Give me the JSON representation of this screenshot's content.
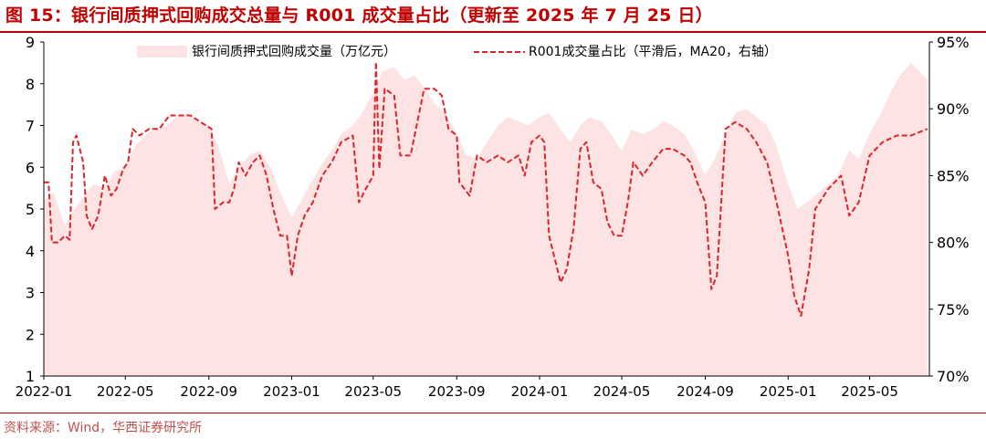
{
  "title": "图 15：银行间质押式回购成交总量与 R001 成交量占比（更新至 2025 年 7 月 25 日）",
  "source": "资料来源：Wind，华西证券研究所",
  "colors": {
    "accent": "#c00000",
    "area": "#fde3e3",
    "line": "#d9262c",
    "axis": "#000000"
  },
  "chart_data": {
    "type": "area",
    "x_ticks": [
      "2022-01",
      "2022-05",
      "2022-09",
      "2023-01",
      "2023-05",
      "2023-09",
      "2024-01",
      "2024-05",
      "2024-09",
      "2025-01",
      "2025-05"
    ],
    "left_axis": {
      "min": 1,
      "max": 9,
      "ticks": [
        "1",
        "2",
        "3",
        "4",
        "5",
        "6",
        "7",
        "8",
        "9"
      ]
    },
    "right_axis": {
      "min": 70,
      "max": 95,
      "ticks": [
        "70%",
        "75%",
        "80%",
        "85%",
        "90%",
        "95%"
      ]
    },
    "legend": {
      "placement": "top"
    },
    "series": [
      {
        "name": "银行间质押式回购成交量（万亿元）",
        "type": "area",
        "axis": "left",
        "points": [
          [
            "2022-01-01",
            5.2
          ],
          [
            "2022-01-15",
            5.4
          ],
          [
            "2022-02-01",
            4.6
          ],
          [
            "2022-02-15",
            5.0
          ],
          [
            "2022-03-01",
            5.3
          ],
          [
            "2022-03-15",
            5.6
          ],
          [
            "2022-04-01",
            5.5
          ],
          [
            "2022-04-15",
            5.9
          ],
          [
            "2022-05-01",
            6.0
          ],
          [
            "2022-05-15",
            6.5
          ],
          [
            "2022-06-01",
            6.8
          ],
          [
            "2022-06-15",
            6.9
          ],
          [
            "2022-07-01",
            7.0
          ],
          [
            "2022-07-15",
            7.2
          ],
          [
            "2022-08-01",
            7.3
          ],
          [
            "2022-08-15",
            7.1
          ],
          [
            "2022-09-01",
            7.0
          ],
          [
            "2022-09-15",
            6.5
          ],
          [
            "2022-10-01",
            5.6
          ],
          [
            "2022-10-15",
            6.0
          ],
          [
            "2022-11-01",
            6.3
          ],
          [
            "2022-11-15",
            6.4
          ],
          [
            "2022-12-01",
            6.0
          ],
          [
            "2022-12-15",
            5.4
          ],
          [
            "2023-01-01",
            4.8
          ],
          [
            "2023-01-15",
            5.2
          ],
          [
            "2023-02-01",
            5.7
          ],
          [
            "2023-02-15",
            6.1
          ],
          [
            "2023-03-01",
            6.4
          ],
          [
            "2023-03-15",
            6.8
          ],
          [
            "2023-04-01",
            7.0
          ],
          [
            "2023-04-15",
            7.3
          ],
          [
            "2023-05-01",
            7.8
          ],
          [
            "2023-05-15",
            8.3
          ],
          [
            "2023-06-01",
            8.4
          ],
          [
            "2023-06-15",
            8.1
          ],
          [
            "2023-07-01",
            8.2
          ],
          [
            "2023-07-15",
            7.9
          ],
          [
            "2023-08-01",
            7.5
          ],
          [
            "2023-08-15",
            7.3
          ],
          [
            "2023-09-01",
            6.8
          ],
          [
            "2023-09-15",
            6.3
          ],
          [
            "2023-10-01",
            6.2
          ],
          [
            "2023-10-15",
            6.6
          ],
          [
            "2023-11-01",
            7.0
          ],
          [
            "2023-11-15",
            7.2
          ],
          [
            "2023-12-01",
            7.1
          ],
          [
            "2023-12-15",
            7.0
          ],
          [
            "2024-01-01",
            7.2
          ],
          [
            "2024-01-15",
            7.3
          ],
          [
            "2024-02-01",
            6.9
          ],
          [
            "2024-02-15",
            6.6
          ],
          [
            "2024-03-01",
            7.0
          ],
          [
            "2024-03-15",
            7.2
          ],
          [
            "2024-04-01",
            7.1
          ],
          [
            "2024-04-15",
            6.8
          ],
          [
            "2024-05-01",
            6.4
          ],
          [
            "2024-05-15",
            6.9
          ],
          [
            "2024-06-01",
            6.8
          ],
          [
            "2024-06-15",
            6.9
          ],
          [
            "2024-07-01",
            7.1
          ],
          [
            "2024-07-15",
            7.0
          ],
          [
            "2024-08-01",
            6.8
          ],
          [
            "2024-08-15",
            6.4
          ],
          [
            "2024-09-01",
            5.8
          ],
          [
            "2024-09-15",
            6.2
          ],
          [
            "2024-10-01",
            6.8
          ],
          [
            "2024-10-15",
            7.3
          ],
          [
            "2024-11-01",
            7.4
          ],
          [
            "2024-11-15",
            7.2
          ],
          [
            "2024-12-01",
            7.0
          ],
          [
            "2024-12-15",
            6.5
          ],
          [
            "2025-01-01",
            5.6
          ],
          [
            "2025-01-15",
            5.0
          ],
          [
            "2025-02-01",
            5.2
          ],
          [
            "2025-02-15",
            5.4
          ],
          [
            "2025-03-01",
            5.6
          ],
          [
            "2025-03-15",
            5.8
          ],
          [
            "2025-04-01",
            6.4
          ],
          [
            "2025-04-15",
            6.2
          ],
          [
            "2025-05-01",
            6.8
          ],
          [
            "2025-05-15",
            7.2
          ],
          [
            "2025-06-01",
            7.8
          ],
          [
            "2025-06-15",
            8.2
          ],
          [
            "2025-07-01",
            8.5
          ],
          [
            "2025-07-25",
            8.1
          ]
        ]
      },
      {
        "name": "R001成交量占比（平滑后，MA20，右轴）",
        "type": "line",
        "style": "dashed",
        "axis": "right",
        "points": [
          [
            "2022-01-01",
            84.5
          ],
          [
            "2022-01-08",
            84.5
          ],
          [
            "2022-01-13",
            80.0
          ],
          [
            "2022-01-22",
            80.0
          ],
          [
            "2022-02-01",
            80.5
          ],
          [
            "2022-02-08",
            80.2
          ],
          [
            "2022-02-13",
            87.5
          ],
          [
            "2022-02-18",
            88.0
          ],
          [
            "2022-02-28",
            86.0
          ],
          [
            "2022-03-05",
            82.0
          ],
          [
            "2022-03-13",
            81.0
          ],
          [
            "2022-03-22",
            82.0
          ],
          [
            "2022-04-01",
            85.0
          ],
          [
            "2022-04-10",
            83.5
          ],
          [
            "2022-04-18",
            84.0
          ],
          [
            "2022-04-28",
            85.5
          ],
          [
            "2022-05-05",
            86.0
          ],
          [
            "2022-05-12",
            88.5
          ],
          [
            "2022-05-22",
            88.0
          ],
          [
            "2022-06-05",
            88.5
          ],
          [
            "2022-06-20",
            88.5
          ],
          [
            "2022-07-05",
            89.5
          ],
          [
            "2022-07-20",
            89.5
          ],
          [
            "2022-08-05",
            89.5
          ],
          [
            "2022-08-20",
            89.0
          ],
          [
            "2022-09-05",
            88.5
          ],
          [
            "2022-09-10",
            82.5
          ],
          [
            "2022-09-22",
            83.0
          ],
          [
            "2022-10-01",
            83.0
          ],
          [
            "2022-10-08",
            84.0
          ],
          [
            "2022-10-15",
            86.0
          ],
          [
            "2022-10-25",
            85.0
          ],
          [
            "2022-11-05",
            86.0
          ],
          [
            "2022-11-15",
            86.5
          ],
          [
            "2022-11-25",
            85.0
          ],
          [
            "2022-12-05",
            82.5
          ],
          [
            "2022-12-15",
            80.5
          ],
          [
            "2022-12-25",
            80.5
          ],
          [
            "2023-01-01",
            77.5
          ],
          [
            "2023-01-10",
            80.5
          ],
          [
            "2023-01-20",
            82.0
          ],
          [
            "2023-02-01",
            83.0
          ],
          [
            "2023-02-15",
            85.0
          ],
          [
            "2023-03-01",
            86.0
          ],
          [
            "2023-03-15",
            87.5
          ],
          [
            "2023-04-01",
            88.0
          ],
          [
            "2023-04-10",
            83.0
          ],
          [
            "2023-04-20",
            84.0
          ],
          [
            "2023-05-01",
            85.0
          ],
          [
            "2023-05-05",
            93.5
          ],
          [
            "2023-05-10",
            85.5
          ],
          [
            "2023-05-18",
            91.5
          ],
          [
            "2023-06-01",
            91.0
          ],
          [
            "2023-06-10",
            86.5
          ],
          [
            "2023-06-25",
            86.5
          ],
          [
            "2023-07-05",
            89.0
          ],
          [
            "2023-07-15",
            91.5
          ],
          [
            "2023-07-30",
            91.5
          ],
          [
            "2023-08-10",
            91.0
          ],
          [
            "2023-08-20",
            88.5
          ],
          [
            "2023-09-01",
            88.0
          ],
          [
            "2023-09-05",
            84.5
          ],
          [
            "2023-09-20",
            83.5
          ],
          [
            "2023-10-01",
            86.5
          ],
          [
            "2023-10-15",
            86.0
          ],
          [
            "2023-11-01",
            86.5
          ],
          [
            "2023-11-15",
            86.0
          ],
          [
            "2023-12-01",
            86.5
          ],
          [
            "2023-12-10",
            85.0
          ],
          [
            "2023-12-20",
            87.5
          ],
          [
            "2024-01-01",
            88.0
          ],
          [
            "2024-01-08",
            87.5
          ],
          [
            "2024-01-15",
            80.5
          ],
          [
            "2024-02-01",
            77.0
          ],
          [
            "2024-02-10",
            78.0
          ],
          [
            "2024-02-20",
            81.0
          ],
          [
            "2024-03-01",
            87.0
          ],
          [
            "2024-03-10",
            87.5
          ],
          [
            "2024-03-20",
            84.5
          ],
          [
            "2024-04-01",
            84.0
          ],
          [
            "2024-04-10",
            81.5
          ],
          [
            "2024-04-20",
            80.5
          ],
          [
            "2024-05-01",
            80.5
          ],
          [
            "2024-05-10",
            83.0
          ],
          [
            "2024-05-18",
            86.0
          ],
          [
            "2024-06-01",
            85.0
          ],
          [
            "2024-06-15",
            86.0
          ],
          [
            "2024-07-01",
            87.0
          ],
          [
            "2024-07-15",
            87.0
          ],
          [
            "2024-08-01",
            86.5
          ],
          [
            "2024-08-10",
            86.0
          ],
          [
            "2024-08-20",
            84.5
          ],
          [
            "2024-09-01",
            83.0
          ],
          [
            "2024-09-10",
            76.5
          ],
          [
            "2024-09-18",
            77.5
          ],
          [
            "2024-10-01",
            88.5
          ],
          [
            "2024-10-15",
            89.0
          ],
          [
            "2024-11-01",
            88.5
          ],
          [
            "2024-11-15",
            87.5
          ],
          [
            "2024-12-01",
            86.0
          ],
          [
            "2024-12-15",
            83.0
          ],
          [
            "2025-01-01",
            79.0
          ],
          [
            "2025-01-10",
            76.0
          ],
          [
            "2025-01-20",
            74.5
          ],
          [
            "2025-02-01",
            78.0
          ],
          [
            "2025-02-10",
            82.5
          ],
          [
            "2025-03-01",
            84.0
          ],
          [
            "2025-03-20",
            85.0
          ],
          [
            "2025-04-01",
            82.0
          ],
          [
            "2025-04-15",
            83.0
          ],
          [
            "2025-05-01",
            86.5
          ],
          [
            "2025-05-20",
            87.5
          ],
          [
            "2025-06-10",
            88.0
          ],
          [
            "2025-07-01",
            88.0
          ],
          [
            "2025-07-25",
            88.5
          ]
        ]
      }
    ]
  }
}
